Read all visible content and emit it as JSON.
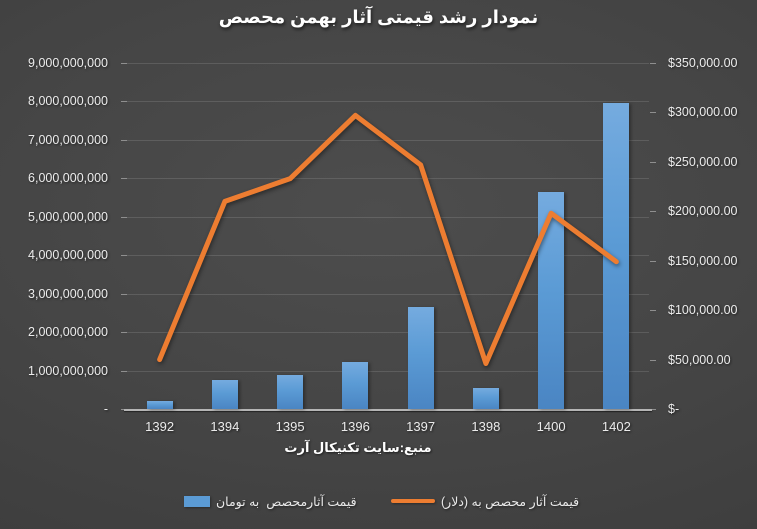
{
  "title": "نمودار رشد قیمتی آثار بهمن محصص",
  "source_note": "منبع:سایت تکنیکال آرت",
  "legend": {
    "bar": {
      "label": "قیمت آثارمحصص  به تومان",
      "color": "#5B9BD5"
    },
    "line": {
      "label": "قیمت آثار محصص به (دلار)",
      "color": "#ED7D31"
    }
  },
  "chart_data": {
    "type": "combo-bar-line",
    "title": "نمودار رشد قیمتی آثار بهمن محصص",
    "source": "منبع:سایت تکنیکال آرت",
    "categories": [
      "1392",
      "1394",
      "1395",
      "1396",
      "1397",
      "1398",
      "1400",
      "1402"
    ],
    "series": [
      {
        "name": "قیمت آثارمحصص  به تومان",
        "type": "bar",
        "axis": "left",
        "color": "#5B9BD5",
        "values": [
          200000000,
          750000000,
          880000000,
          1230000000,
          2660000000,
          540000000,
          5650000000,
          7960000000
        ]
      },
      {
        "name": "قیمت آثار محصص به (دلار)",
        "type": "line",
        "axis": "right",
        "color": "#ED7D31",
        "values": [
          50000,
          210000,
          233000,
          297000,
          247000,
          46000,
          198000,
          149000
        ]
      }
    ],
    "left_axis": {
      "min": 0,
      "max": 9000000000,
      "tick_labels": [
        "9,000,000,000",
        "8,000,000,000",
        "7,000,000,000",
        "6,000,000,000",
        "5,000,000,000",
        "4,000,000,000",
        "3,000,000,000",
        "2,000,000,000",
        "1,000,000,000",
        "-"
      ]
    },
    "right_axis": {
      "min": 0,
      "max": 350000,
      "tick_labels": [
        "$350,000.00",
        "$300,000.00",
        "$250,000.00",
        "$200,000.00",
        "$150,000.00",
        "$100,000.00",
        "$50,000.00",
        "$-"
      ]
    },
    "grid": true,
    "legend_position": "bottom"
  }
}
